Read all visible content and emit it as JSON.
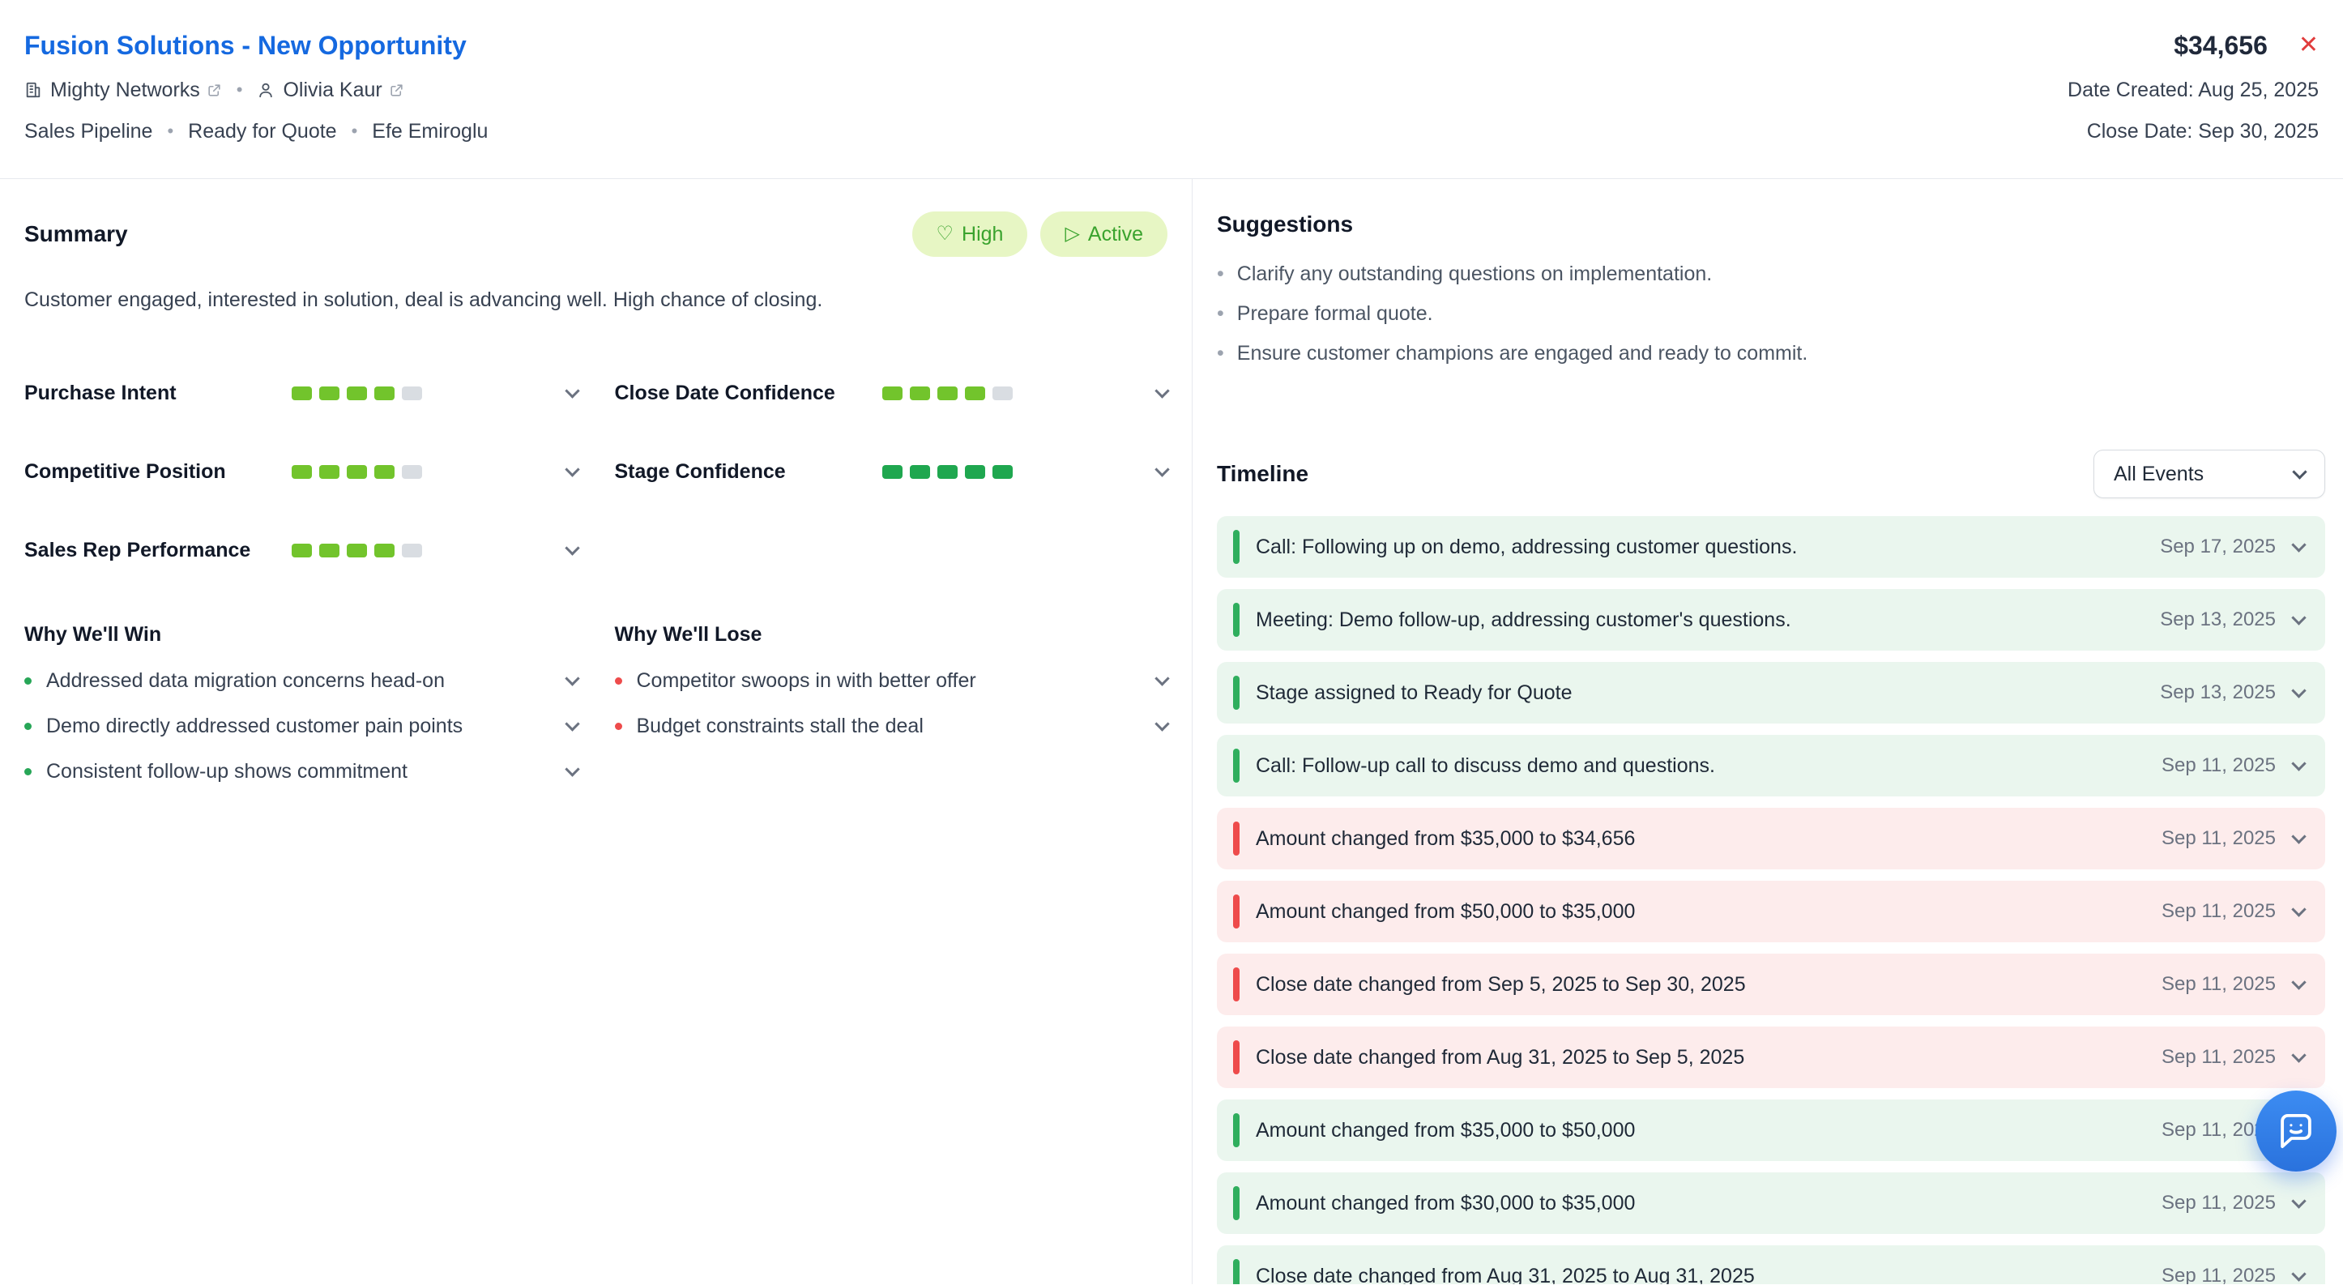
{
  "palette": {
    "title_blue": "#1569e0",
    "lime": "#72c42c",
    "green": "#1fa74f",
    "red": "#ee4b4b",
    "badge_bg": "#e7f6c4",
    "badge_text": "#3aa32e",
    "event_green_bg": "#eaf6ee",
    "event_red_bg": "#fdecec",
    "fab_blue": "#2f80e4"
  },
  "icons": {
    "close": "✕",
    "heart": "♡",
    "play": "▷",
    "bullet": "•",
    "dot": "•"
  },
  "header": {
    "title": "Fusion Solutions - New Opportunity",
    "amount": "$34,656",
    "company": "Mighty Networks",
    "contact": "Olivia Kaur",
    "pipeline": "Sales Pipeline",
    "stage": "Ready for Quote",
    "owner": "Efe Emiroglu",
    "date_created": "Date Created: Aug 25, 2025",
    "close_date": "Close Date: Sep 30, 2025"
  },
  "summary": {
    "heading": "Summary",
    "priority_label": "High",
    "status_label": "Active",
    "text": "Customer engaged, interested in solution, deal is advancing well. High chance of closing.",
    "metrics": [
      {
        "label": "Purchase Intent",
        "value": 4,
        "max": 5,
        "tone": "lime"
      },
      {
        "label": "Competitive Position",
        "value": 4,
        "max": 5,
        "tone": "lime"
      },
      {
        "label": "Sales Rep Performance",
        "value": 4,
        "max": 5,
        "tone": "lime"
      },
      {
        "label": "Close Date Confidence",
        "value": 4,
        "max": 5,
        "tone": "lime"
      },
      {
        "label": "Stage Confidence",
        "value": 5,
        "max": 5,
        "tone": "green"
      }
    ],
    "win": {
      "heading": "Why We'll Win",
      "items": [
        "Addressed data migration concerns head-on",
        "Demo directly addressed customer pain points",
        "Consistent follow-up shows commitment"
      ]
    },
    "lose": {
      "heading": "Why We'll Lose",
      "items": [
        "Competitor swoops in with better offer",
        "Budget constraints stall the deal"
      ]
    }
  },
  "suggestions": {
    "heading": "Suggestions",
    "items": [
      "Clarify any outstanding questions on implementation.",
      "Prepare formal quote.",
      "Ensure customer champions are engaged and ready to commit."
    ]
  },
  "timeline": {
    "heading": "Timeline",
    "filter_label": "All Events",
    "events": [
      {
        "text": "Call: Following up on demo, addressing customer questions.",
        "date": "Sep 17, 2025",
        "tone": "green"
      },
      {
        "text": "Meeting: Demo follow-up, addressing customer's questions.",
        "date": "Sep 13, 2025",
        "tone": "green"
      },
      {
        "text": "Stage assigned to Ready for Quote",
        "date": "Sep 13, 2025",
        "tone": "green"
      },
      {
        "text": "Call: Follow-up call to discuss demo and questions.",
        "date": "Sep 11, 2025",
        "tone": "green"
      },
      {
        "text": "Amount changed from $35,000 to $34,656",
        "date": "Sep 11, 2025",
        "tone": "red"
      },
      {
        "text": "Amount changed from $50,000 to $35,000",
        "date": "Sep 11, 2025",
        "tone": "red"
      },
      {
        "text": "Close date changed from Sep 5, 2025 to Sep 30, 2025",
        "date": "Sep 11, 2025",
        "tone": "red"
      },
      {
        "text": "Close date changed from Aug 31, 2025 to Sep 5, 2025",
        "date": "Sep 11, 2025",
        "tone": "red"
      },
      {
        "text": "Amount changed from $35,000 to $50,000",
        "date": "Sep 11, 2025",
        "tone": "green"
      },
      {
        "text": "Amount changed from $30,000 to $35,000",
        "date": "Sep 11, 2025",
        "tone": "green"
      },
      {
        "text": "Close date changed from Aug 31, 2025 to Aug 31, 2025",
        "date": "Sep 11, 2025",
        "tone": "green"
      }
    ]
  }
}
